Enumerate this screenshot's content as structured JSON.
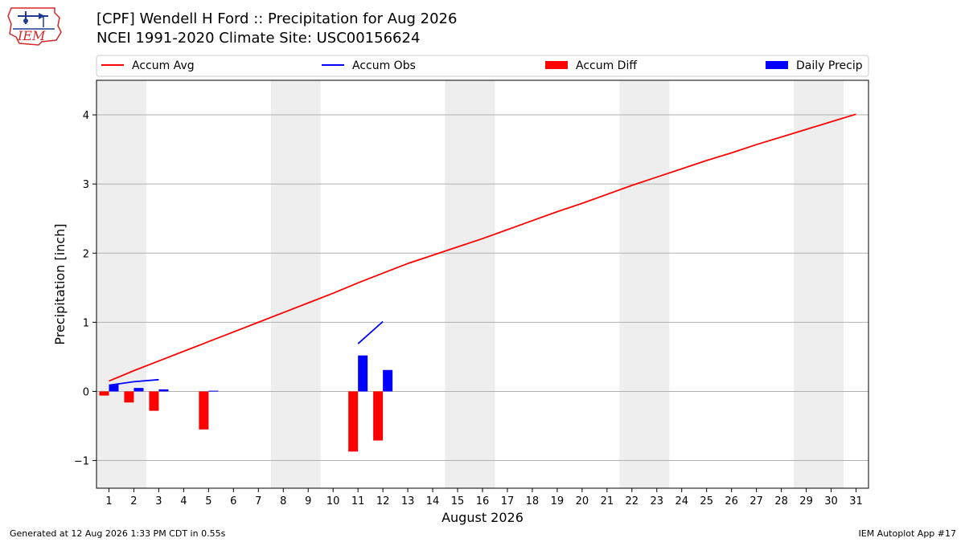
{
  "header": {
    "title_line1": "[CPF] Wendell H Ford :: Precipitation for Aug 2026",
    "title_line2": "NCEI 1991-2020 Climate Site: USC00156624"
  },
  "logo": {
    "text": "IEM",
    "color": "#d62728"
  },
  "footer": {
    "generated": "Generated at 12 Aug 2026 1:33 PM CDT in 0.55s",
    "app": "IEM Autoplot App #17"
  },
  "chart_data": {
    "type": "bar",
    "xlabel": "August 2026",
    "ylabel": "Precipitation [inch]",
    "xlim": [
      0.5,
      31.5
    ],
    "ylim": [
      -1.4,
      4.5
    ],
    "days": [
      1,
      2,
      3,
      4,
      5,
      6,
      7,
      8,
      9,
      10,
      11,
      12,
      13,
      14,
      15,
      16,
      17,
      18,
      19,
      20,
      21,
      22,
      23,
      24,
      25,
      26,
      27,
      28,
      29,
      30,
      31
    ],
    "yticks": [
      -1,
      0,
      1,
      2,
      3,
      4
    ],
    "ytick_labels": [
      "−1",
      "0",
      "1",
      "2",
      "3",
      "4"
    ],
    "grid": "horizontal",
    "weekends": [
      [
        1,
        2
      ],
      [
        8,
        9
      ],
      [
        15,
        16
      ],
      [
        22,
        23
      ],
      [
        29,
        30
      ]
    ],
    "legend_position": "top, above plot",
    "legend": [
      {
        "label": "Accum Avg",
        "kind": "line",
        "color": "#ff0000"
      },
      {
        "label": "Accum Obs",
        "kind": "line",
        "color": "#0000ff"
      },
      {
        "label": "Accum Diff",
        "kind": "bar",
        "color": "#ff0000"
      },
      {
        "label": "Daily Precip",
        "kind": "bar",
        "color": "#0000ff"
      }
    ],
    "series": [
      {
        "name": "Accum Avg",
        "kind": "line",
        "color": "#ff0000",
        "x": [
          1,
          2,
          3,
          4,
          5,
          6,
          7,
          8,
          9,
          10,
          11,
          12,
          13,
          14,
          15,
          16,
          17,
          18,
          19,
          20,
          21,
          22,
          23,
          24,
          25,
          26,
          27,
          28,
          29,
          30,
          31
        ],
        "values": [
          0.15,
          0.3,
          0.44,
          0.58,
          0.72,
          0.86,
          1.0,
          1.14,
          1.28,
          1.42,
          1.57,
          1.71,
          1.85,
          1.97,
          2.09,
          2.21,
          2.34,
          2.47,
          2.6,
          2.72,
          2.85,
          2.98,
          3.1,
          3.22,
          3.34,
          3.45,
          3.57,
          3.68,
          3.79,
          3.9,
          4.01
        ]
      },
      {
        "name": "Accum Obs",
        "kind": "line",
        "color": "#0000ff",
        "segments": [
          {
            "x": [
              1,
              2,
              3
            ],
            "values": [
              0.09,
              0.14,
              0.17
            ]
          },
          {
            "x": [
              11,
              12
            ],
            "values": [
              0.69,
              1.01
            ]
          }
        ]
      },
      {
        "name": "Accum Diff",
        "kind": "bar",
        "color": "#ff0000",
        "x": [
          1,
          2,
          3,
          5,
          11,
          12
        ],
        "values": [
          -0.06,
          -0.16,
          -0.28,
          -0.55,
          -0.87,
          -0.71
        ]
      },
      {
        "name": "Daily Precip",
        "kind": "bar",
        "color": "#0000ff",
        "x": [
          1,
          2,
          3,
          5,
          11,
          12
        ],
        "values": [
          0.1,
          0.05,
          0.03,
          0.01,
          0.52,
          0.31
        ]
      }
    ]
  }
}
